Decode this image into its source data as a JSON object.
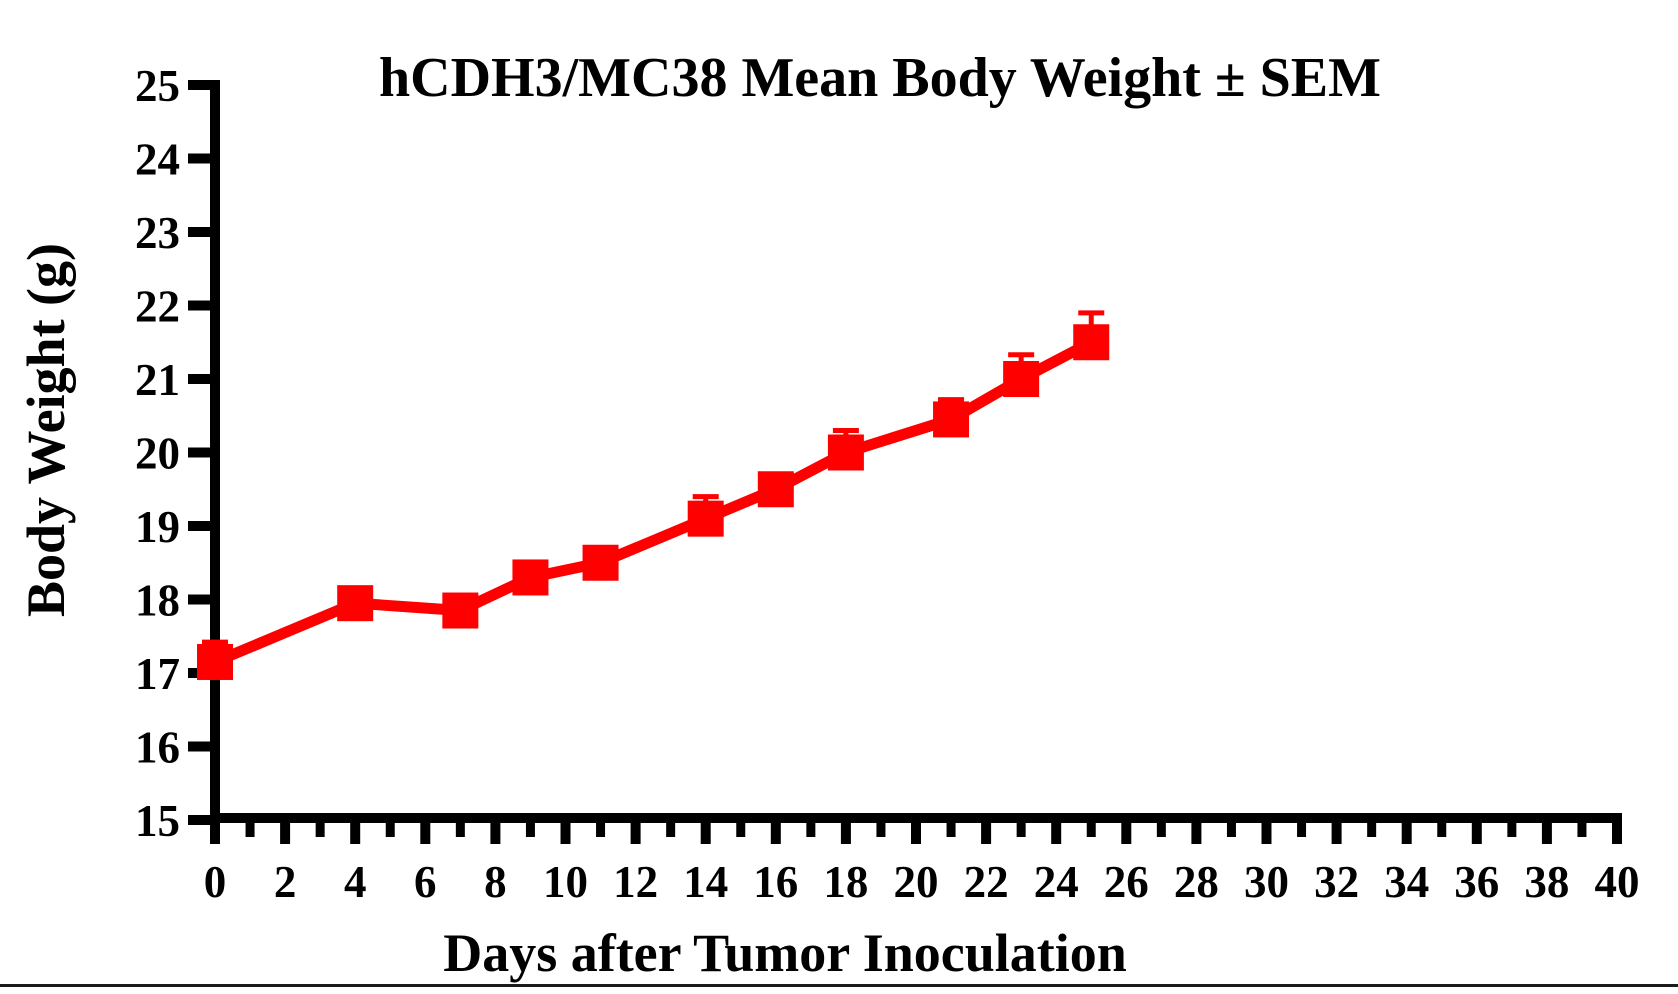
{
  "page": {
    "background_color": "#ffffff",
    "accent_color": "#ff0000",
    "axis_color": "#000000"
  },
  "chart_data": {
    "type": "line",
    "title": "hCDH3/MC38 Mean Body Weight ± SEM",
    "xlabel": "Days after Tumor Inoculation",
    "ylabel": "Body Weight (g)",
    "xlim": [
      0,
      40
    ],
    "ylim": [
      15,
      25
    ],
    "x_major_ticks": [
      0,
      2,
      4,
      6,
      8,
      10,
      12,
      14,
      16,
      18,
      20,
      22,
      24,
      26,
      28,
      30,
      32,
      34,
      36,
      38,
      40
    ],
    "x_minor_ticks": [
      1,
      3,
      5,
      7,
      9,
      11,
      13,
      15,
      17,
      19,
      21,
      23,
      25,
      27,
      29,
      31,
      33,
      35,
      37,
      39
    ],
    "y_ticks": [
      15,
      16,
      17,
      18,
      19,
      20,
      21,
      22,
      23,
      24,
      25
    ],
    "grid": false,
    "legend": "none",
    "error_bars": "upper SEM only",
    "series": [
      {
        "name": "hCDH3/MC38",
        "color": "#ff0000",
        "marker": "square",
        "x": [
          0,
          4,
          7,
          9,
          11,
          14,
          16,
          18,
          21,
          23,
          25
        ],
        "y": [
          17.15,
          17.95,
          17.85,
          18.3,
          18.5,
          19.1,
          19.5,
          20.0,
          20.45,
          21.0,
          21.5
        ],
        "sem": [
          0.27,
          0.1,
          0.1,
          0.1,
          0.1,
          0.3,
          0.1,
          0.3,
          0.27,
          0.33,
          0.4
        ]
      }
    ]
  }
}
